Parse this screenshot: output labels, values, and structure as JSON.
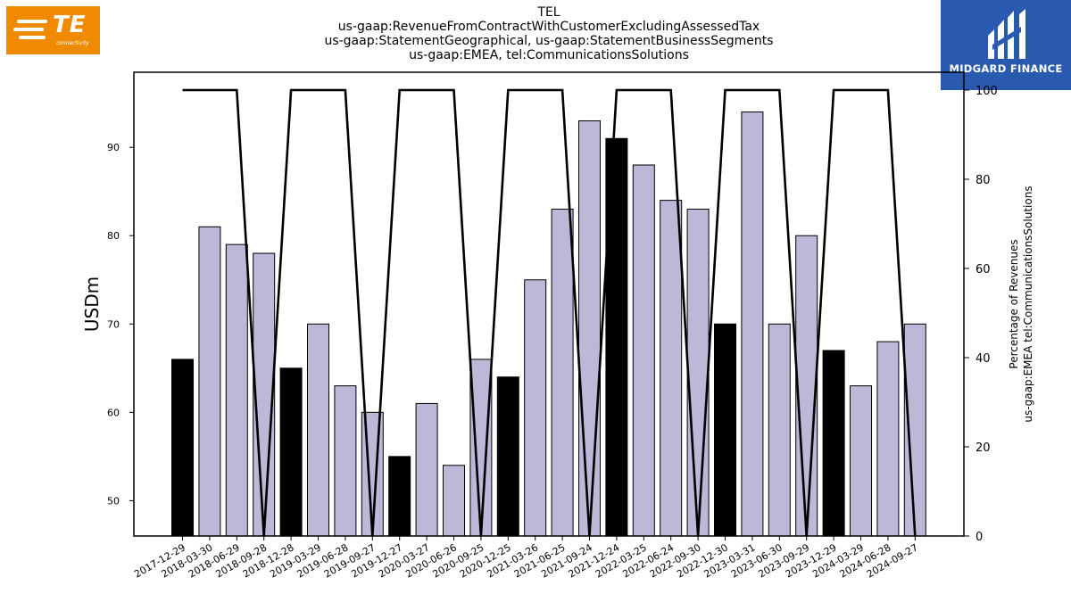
{
  "header": {
    "title_lines": [
      "TEL",
      "us-gaap:RevenueFromContractWithCustomerExcludingAssessedTax",
      "us-gaap:StatementGeographical, us-gaap:StatementBusinessSegments",
      "us-gaap:EMEA, tel:CommunicationsSolutions"
    ]
  },
  "logos": {
    "left": {
      "name": "TE",
      "sub": "connectivity",
      "color": "#f08a00"
    },
    "right": {
      "name": "MIDGARD FINANCE",
      "color": "#2a5ab0"
    }
  },
  "chart_data": {
    "type": "bar",
    "ylabel": "USDm",
    "ylabel_right": [
      "Percentage of Revenues",
      "us-gaap:EMEA tel:CommunicationsSolutions"
    ],
    "ylim": [
      46,
      98.5
    ],
    "ylim_right": [
      0,
      104
    ],
    "yticks": [
      50,
      60,
      70,
      80,
      90
    ],
    "yticks_right": [
      0,
      20,
      40,
      60,
      80,
      100
    ],
    "categories": [
      "2017-12-29",
      "2018-03-30",
      "2018-06-29",
      "2018-09-28",
      "2018-12-28",
      "2019-03-29",
      "2019-06-28",
      "2019-09-27",
      "2019-12-27",
      "2020-03-27",
      "2020-06-26",
      "2020-09-25",
      "2020-12-25",
      "2021-03-26",
      "2021-06-25",
      "2021-09-24",
      "2021-12-24",
      "2022-03-25",
      "2022-06-24",
      "2022-09-30",
      "2022-12-30",
      "2023-03-31",
      "2023-06-30",
      "2023-09-29",
      "2023-12-29",
      "2024-03-29",
      "2024-06-28",
      "2024-09-27"
    ],
    "series": [
      {
        "values": [
          66,
          81,
          79,
          78,
          65,
          70,
          63,
          60,
          55,
          61,
          54,
          66,
          64,
          75,
          83,
          93,
          91,
          88,
          84,
          83,
          70,
          94,
          70,
          80,
          67,
          63,
          68,
          70
        ]
      },
      {
        "axis": "right",
        "values": [
          100,
          100,
          100,
          0,
          100,
          100,
          100,
          0,
          100,
          100,
          100,
          0,
          100,
          100,
          100,
          0,
          100,
          100,
          100,
          0,
          100,
          100,
          100,
          0,
          100,
          100,
          100,
          0
        ]
      }
    ],
    "highlight_indices": [
      0,
      4,
      8,
      12,
      16,
      20,
      24
    ],
    "colors": {
      "bar": "#bcb8d8",
      "highlight": "#000000",
      "line": "#000000"
    },
    "grid": false
  }
}
